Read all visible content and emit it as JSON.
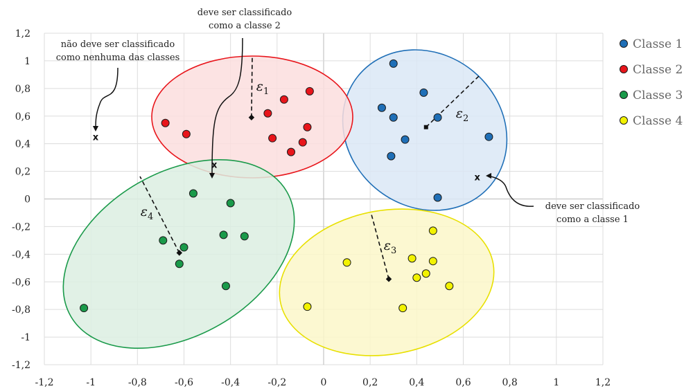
{
  "chart_data": {
    "type": "scatter",
    "xlim": [
      -1.2,
      1.2
    ],
    "ylim": [
      -1.2,
      1.2
    ],
    "x_ticks": [
      "-1,2",
      "-1",
      "-0,8",
      "-0,6",
      "-0,4",
      "-0,2",
      "0",
      "0,2",
      "0,4",
      "0,6",
      "0,8",
      "1",
      "1,2"
    ],
    "y_ticks": [
      "-1,2",
      "-1",
      "-0,8",
      "-0,6",
      "-0,4",
      "-0,2",
      "0",
      "0,2",
      "0,4",
      "0,6",
      "0,8",
      "1",
      "1,2"
    ],
    "grid": true,
    "legend_position": "right",
    "series": [
      {
        "name": "Classe 1",
        "color": "#1f6fb7",
        "ellipse_color": "#dbe8f6",
        "edge_color": "#1f6fb7",
        "center": [
          0.44,
          0.52
        ],
        "epsilon_label": "ε2",
        "points": [
          [
            0.3,
            0.98
          ],
          [
            0.43,
            0.77
          ],
          [
            0.25,
            0.66
          ],
          [
            0.3,
            0.59
          ],
          [
            0.49,
            0.59
          ],
          [
            0.35,
            0.43
          ],
          [
            0.29,
            0.31
          ],
          [
            0.71,
            0.45
          ],
          [
            0.49,
            0.01
          ]
        ]
      },
      {
        "name": "Classe 2",
        "color": "#e8151b",
        "ellipse_color": "#fbdede",
        "edge_color": "#e8151b",
        "center": [
          -0.31,
          0.59
        ],
        "epsilon_label": "ε1",
        "points": [
          [
            -0.68,
            0.55
          ],
          [
            -0.59,
            0.47
          ],
          [
            -0.24,
            0.62
          ],
          [
            -0.17,
            0.72
          ],
          [
            -0.06,
            0.78
          ],
          [
            -0.07,
            0.52
          ],
          [
            -0.22,
            0.44
          ],
          [
            -0.09,
            0.41
          ],
          [
            -0.14,
            0.34
          ]
        ]
      },
      {
        "name": "Classe 3",
        "color": "#1a9a4a",
        "ellipse_color": "#dcefe2",
        "edge_color": "#1a9a4a",
        "center": [
          -0.62,
          -0.39
        ],
        "epsilon_label": "ε4",
        "points": [
          [
            -0.56,
            0.04
          ],
          [
            -0.4,
            -0.03
          ],
          [
            -0.43,
            -0.26
          ],
          [
            -0.34,
            -0.27
          ],
          [
            -0.69,
            -0.3
          ],
          [
            -0.6,
            -0.35
          ],
          [
            -0.62,
            -0.47
          ],
          [
            -0.42,
            -0.63
          ],
          [
            -1.03,
            -0.79
          ]
        ]
      },
      {
        "name": "Classe 4",
        "color": "#f2f200",
        "ellipse_color": "#fbf7c9",
        "edge_color": "#e8e000",
        "center": [
          0.28,
          -0.58
        ],
        "epsilon_label": "ε3",
        "points": [
          [
            0.47,
            -0.23
          ],
          [
            0.1,
            -0.46
          ],
          [
            0.38,
            -0.43
          ],
          [
            0.47,
            -0.45
          ],
          [
            0.44,
            -0.54
          ],
          [
            0.4,
            -0.57
          ],
          [
            0.54,
            -0.63
          ],
          [
            -0.07,
            -0.78
          ],
          [
            0.34,
            -0.79
          ]
        ]
      }
    ],
    "unclassified_points": [
      {
        "label": "x",
        "x": -0.98,
        "y": 0.45
      },
      {
        "label": "x",
        "x": -0.47,
        "y": 0.25
      },
      {
        "label": "x",
        "x": 0.66,
        "y": 0.16
      }
    ],
    "annotations": [
      {
        "lines": [
          "não deve ser classificado",
          "como nenhuma das classes"
        ]
      },
      {
        "lines": [
          "deve ser classificado",
          "como a classe 2"
        ]
      },
      {
        "lines": [
          "deve ser classificado",
          "como a classe 1"
        ]
      }
    ]
  }
}
